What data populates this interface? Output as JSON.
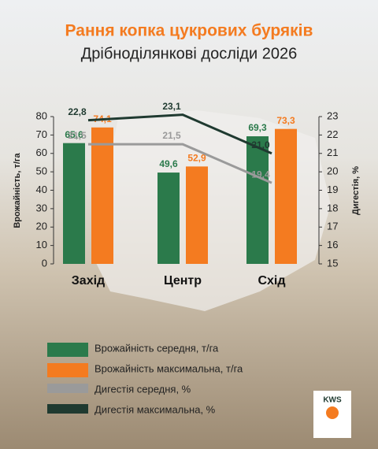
{
  "chart_data": {
    "type": "bar",
    "title": "Рання копка цукрових буряків",
    "subtitle": "Дрібноділянкові досліди 2026",
    "categories": [
      "Захід",
      "Центр",
      "Схід"
    ],
    "ylabel": "Врожайність, т/га",
    "y2label": "Дигестія, %",
    "ylim": [
      0,
      80
    ],
    "yticks": [
      0,
      10,
      20,
      30,
      40,
      50,
      60,
      70,
      80
    ],
    "y2lim": [
      15,
      23
    ],
    "y2ticks": [
      15,
      16,
      17,
      18,
      19,
      20,
      21,
      22,
      23
    ],
    "grid": false,
    "series": [
      {
        "name": "Врожайність середня, т/га",
        "color": "#2b7a4b",
        "values": [
          65.6,
          49.6,
          69.3
        ],
        "value_labels": [
          "65,6",
          "49,6",
          "69,3"
        ]
      },
      {
        "name": "Врожайність максимальна, т/га",
        "color": "#f47b20",
        "values": [
          74.1,
          52.9,
          73.3
        ],
        "value_labels": [
          "74,1",
          "52,9",
          "73,3"
        ]
      },
      {
        "name": "Дигестія середня, %",
        "type": "line",
        "axis": "y2",
        "color": "#9a9a9a",
        "values": [
          21.5,
          21.5,
          19.4
        ],
        "value_labels": [
          "21,5",
          "21,5",
          "19,4"
        ]
      },
      {
        "name": "Дигестія максимальна, %",
        "type": "line",
        "axis": "y2",
        "color": "#1f3a30",
        "values": [
          22.8,
          23.1,
          21.0
        ],
        "value_labels": [
          "22,8",
          "23,1",
          "21,0"
        ]
      }
    ]
  },
  "logo": "KWS"
}
